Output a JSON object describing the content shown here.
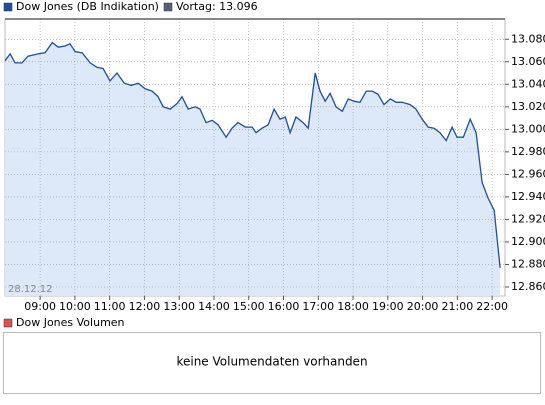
{
  "chart_data": {
    "type": "line",
    "legend_label": "Dow Jones (DB Indikation)",
    "reference_label": "Vortag: 13.096",
    "reference_color": "#5a5f75",
    "date_label": "28.12.12",
    "series": [
      {
        "name": "Dow Jones (DB Indikation)",
        "color": "#1f4e9a",
        "fill": "#dde8f8",
        "x": [
          7.99,
          8.14,
          8.28,
          8.48,
          8.65,
          8.94,
          9.14,
          9.35,
          9.52,
          9.72,
          9.86,
          10.01,
          10.21,
          10.44,
          10.64,
          10.81,
          11.01,
          11.21,
          11.42,
          11.62,
          11.82,
          12.02,
          12.22,
          12.39,
          12.54,
          12.74,
          12.94,
          13.08,
          13.26,
          13.46,
          13.6,
          13.77,
          13.95,
          14.12,
          14.35,
          14.52,
          14.69,
          14.9,
          15.1,
          15.21,
          15.38,
          15.56,
          15.73,
          15.9,
          16.05,
          16.19,
          16.36,
          16.56,
          16.71,
          16.91,
          17.05,
          17.2,
          17.34,
          17.51,
          17.69,
          17.86,
          18.03,
          18.2,
          18.38,
          18.55,
          18.72,
          18.89,
          19.07,
          19.24,
          19.41,
          19.64,
          19.81,
          19.99,
          20.16,
          20.33,
          20.5,
          20.68,
          20.85,
          20.99,
          21.17,
          21.37,
          21.54,
          21.71,
          21.88,
          22.06,
          22.23
        ],
        "values": [
          13061,
          13067,
          13059,
          13059,
          13065,
          13067,
          13068,
          13077,
          13073,
          13074,
          13076,
          13069,
          13068,
          13059,
          13055,
          13054,
          13043,
          13050,
          13041,
          13039,
          13041,
          13036,
          13034,
          13029,
          13020,
          13018,
          13023,
          13029,
          13018,
          13020,
          13018,
          13006,
          13008,
          13004,
          12993,
          13001,
          13006,
          13002,
          13002,
          12997,
          13001,
          13004,
          13018,
          13009,
          13011,
          12997,
          13011,
          13006,
          13001,
          13050,
          13034,
          13025,
          13032,
          13020,
          13016,
          13027,
          13025,
          13024,
          13034,
          13034,
          13031,
          13022,
          13027,
          13024,
          13024,
          13022,
          13018,
          13009,
          13002,
          13001,
          12997,
          12990,
          13002,
          12993,
          12993,
          13009,
          12997,
          12953,
          12939,
          12928,
          12877
        ]
      }
    ],
    "xlim": [
      7.99,
      22.37
    ],
    "xticks": [
      {
        "value": 9,
        "label": "09:00"
      },
      {
        "value": 10,
        "label": "10:00"
      },
      {
        "value": 11,
        "label": "11:00"
      },
      {
        "value": 12,
        "label": "12:00"
      },
      {
        "value": 13,
        "label": "13:00"
      },
      {
        "value": 14,
        "label": "14:00"
      },
      {
        "value": 15,
        "label": "15:00"
      },
      {
        "value": 16,
        "label": "16:00"
      },
      {
        "value": 17,
        "label": "17:00"
      },
      {
        "value": 18,
        "label": "18:00"
      },
      {
        "value": 19,
        "label": "19:00"
      },
      {
        "value": 20,
        "label": "20:00"
      },
      {
        "value": 21,
        "label": "21:00"
      },
      {
        "value": 22,
        "label": "22:00"
      }
    ],
    "ylim": [
      12852,
      13098
    ],
    "yticks": [
      {
        "value": 12860,
        "label": "12.860"
      },
      {
        "value": 12880,
        "label": "12.880"
      },
      {
        "value": 12900,
        "label": "12.900"
      },
      {
        "value": 12920,
        "label": "12.920"
      },
      {
        "value": 12940,
        "label": "12.940"
      },
      {
        "value": 12960,
        "label": "12.960"
      },
      {
        "value": 12980,
        "label": "12.980"
      },
      {
        "value": 13000,
        "label": "13.000"
      },
      {
        "value": 13020,
        "label": "13.020"
      },
      {
        "value": 13040,
        "label": "13.040"
      },
      {
        "value": 13060,
        "label": "13.060"
      },
      {
        "value": 13080,
        "label": "13.080"
      }
    ],
    "grid": true
  },
  "volume_panel": {
    "legend_label": "Dow Jones Volumen",
    "legend_color": "#d9534f",
    "message": "keine Volumendaten vorhanden"
  }
}
